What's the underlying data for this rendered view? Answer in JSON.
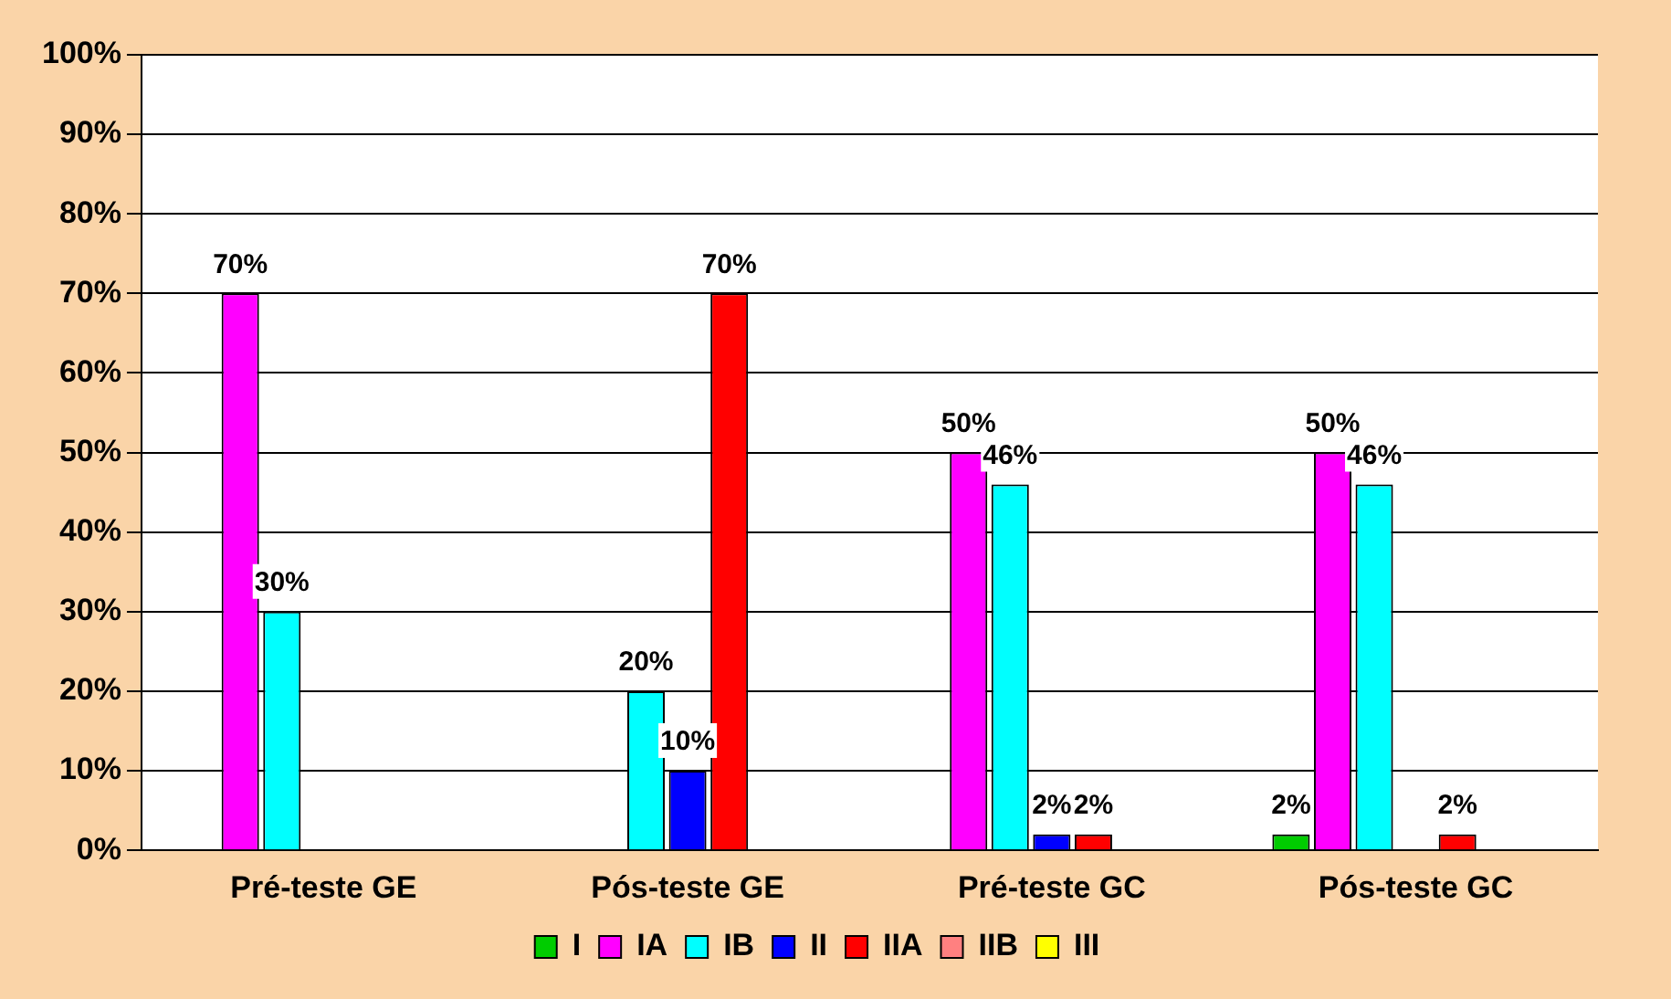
{
  "chart_data": {
    "type": "bar",
    "categories": [
      "Pré-teste GE",
      "Pós-teste GE",
      "Pré-teste GC",
      "Pós-teste GC"
    ],
    "series": [
      {
        "name": "I",
        "color": "#00cc00",
        "values": [
          0,
          0,
          0,
          2
        ],
        "value_labels": [
          null,
          null,
          null,
          "2%"
        ]
      },
      {
        "name": "IA",
        "color": "#ff00ff",
        "values": [
          70,
          0,
          50,
          50
        ],
        "value_labels": [
          "70%",
          null,
          "50%",
          "50%"
        ]
      },
      {
        "name": "IB",
        "color": "#00ffff",
        "values": [
          30,
          20,
          46,
          46
        ],
        "value_labels": [
          "30%",
          "20%",
          "46%",
          "46%"
        ]
      },
      {
        "name": "II",
        "color": "#0000ff",
        "values": [
          0,
          10,
          2,
          0
        ],
        "value_labels": [
          null,
          "10%",
          "2%",
          null
        ]
      },
      {
        "name": "IIA",
        "color": "#ff0000",
        "values": [
          0,
          70,
          2,
          2
        ],
        "value_labels": [
          null,
          "70%",
          "2%",
          "2%"
        ]
      },
      {
        "name": "IIB",
        "color": "#ff8080",
        "values": [
          0,
          0,
          0,
          0
        ]
      },
      {
        "name": "III",
        "color": "#ffff00",
        "values": [
          0,
          0,
          0,
          0
        ]
      }
    ],
    "ylim": [
      0,
      100
    ],
    "yticks": [
      {
        "value": 0,
        "label": "0%"
      },
      {
        "value": 10,
        "label": "10%"
      },
      {
        "value": 20,
        "label": "20%"
      },
      {
        "value": 30,
        "label": "30%"
      },
      {
        "value": 40,
        "label": "40%"
      },
      {
        "value": 50,
        "label": "50%"
      },
      {
        "value": 60,
        "label": "60%"
      },
      {
        "value": 70,
        "label": "70%"
      },
      {
        "value": 80,
        "label": "80%"
      },
      {
        "value": 90,
        "label": "90%"
      },
      {
        "value": 100,
        "label": "100%"
      }
    ],
    "grid": "y",
    "legend": "bottom"
  }
}
